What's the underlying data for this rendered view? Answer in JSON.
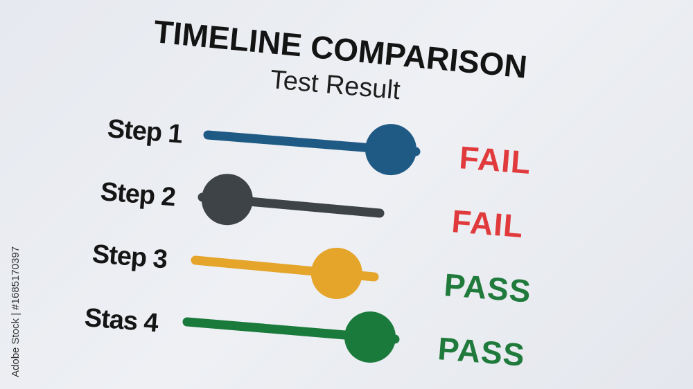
{
  "title": "TIMELINE COMPARISON",
  "subtitle": "Test Result",
  "steps": [
    {
      "label": "Step 1",
      "result": "FAIL",
      "status": "fail",
      "color": "#1f5a85",
      "knob_position": 0.88
    },
    {
      "label": "Step 2",
      "result": "FAIL",
      "status": "fail",
      "color": "#3d4347",
      "knob_position": 0.14
    },
    {
      "label": "Step 3",
      "result": "PASS",
      "status": "pass",
      "color": "#e4a52a",
      "knob_position": 0.79
    },
    {
      "label": "Stas 4",
      "result": "PASS",
      "status": "pass",
      "color": "#1a7a3b",
      "knob_position": 0.88
    }
  ],
  "colors": {
    "fail": "#e13a3c",
    "pass": "#1f7a3c"
  },
  "watermark": "Adobe Stock | #1685170397"
}
